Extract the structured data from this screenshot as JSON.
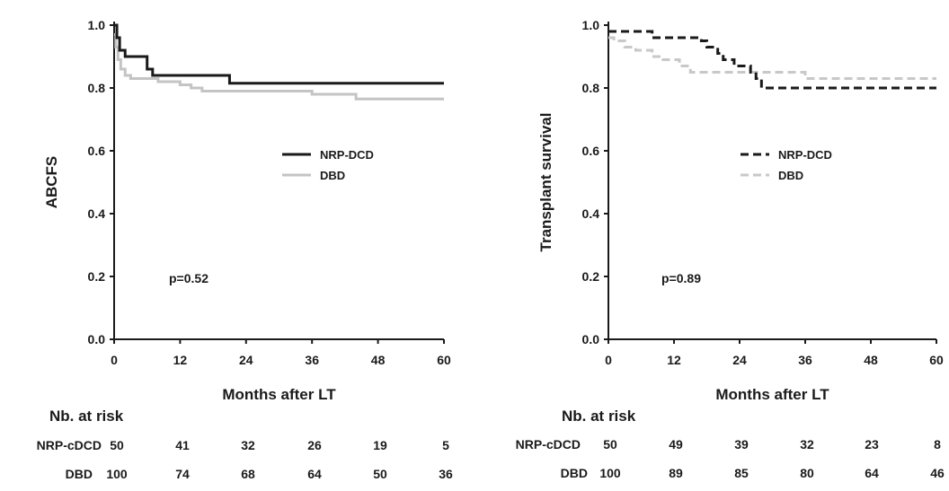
{
  "chart_data": [
    {
      "type": "line",
      "chart_style": "kaplan-meier step curves",
      "xlabel": "Months after LT",
      "ylabel": "ABCFS",
      "xlim": [
        0,
        60
      ],
      "ylim": [
        0,
        1.0
      ],
      "xticks": [
        "0",
        "12",
        "24",
        "36",
        "48",
        "60"
      ],
      "yticks": [
        "0.0",
        "0.2",
        "0.4",
        "0.6",
        "0.8",
        "1.0"
      ],
      "grid": false,
      "legend_position": "center-right",
      "annotation": "p=0.52",
      "series": [
        {
          "name": "NRP-DCD",
          "color": "#1a1a1a",
          "dash": "solid",
          "x": [
            0,
            0.5,
            1,
            2,
            6,
            7,
            21,
            60
          ],
          "y": [
            1.0,
            0.96,
            0.92,
            0.9,
            0.86,
            0.84,
            0.815,
            0.815
          ]
        },
        {
          "name": "DBD",
          "color": "#c4c4c4",
          "dash": "solid",
          "x": [
            0,
            0.3,
            0.7,
            1.2,
            2,
            3,
            8,
            12,
            14,
            16,
            36,
            44,
            60
          ],
          "y": [
            0.97,
            0.93,
            0.89,
            0.86,
            0.84,
            0.83,
            0.82,
            0.81,
            0.8,
            0.79,
            0.78,
            0.765,
            0.765
          ]
        }
      ],
      "at_risk": {
        "title": "Nb. at risk",
        "rows": [
          {
            "label": "NRP-cDCD",
            "values": [
              "50",
              "41",
              "32",
              "26",
              "19",
              "5"
            ]
          },
          {
            "label": "DBD",
            "values": [
              "100",
              "74",
              "68",
              "64",
              "50",
              "36"
            ]
          }
        ]
      }
    },
    {
      "type": "line",
      "chart_style": "kaplan-meier step curves",
      "xlabel": "Months after LT",
      "ylabel": "Transplant survival",
      "xlim": [
        0,
        60
      ],
      "ylim": [
        0,
        1.0
      ],
      "xticks": [
        "0",
        "12",
        "24",
        "36",
        "48",
        "60"
      ],
      "yticks": [
        "0.0",
        "0.2",
        "0.4",
        "0.6",
        "0.8",
        "1.0"
      ],
      "grid": false,
      "legend_position": "center-right",
      "annotation": "p=0.89",
      "series": [
        {
          "name": "NRP-DCD",
          "color": "#1a1a1a",
          "dash": "dashed",
          "x": [
            0,
            8,
            17,
            18,
            20,
            21,
            23,
            26,
            27,
            28,
            60
          ],
          "y": [
            0.98,
            0.96,
            0.95,
            0.93,
            0.91,
            0.89,
            0.87,
            0.85,
            0.83,
            0.8,
            0.8
          ]
        },
        {
          "name": "DBD",
          "color": "#c8c8c8",
          "dash": "dashed",
          "x": [
            0,
            1,
            3,
            5,
            8,
            10,
            13,
            15,
            36,
            60
          ],
          "y": [
            0.96,
            0.95,
            0.93,
            0.92,
            0.9,
            0.89,
            0.87,
            0.85,
            0.83,
            0.83
          ]
        }
      ],
      "at_risk": {
        "title": "Nb. at risk",
        "rows": [
          {
            "label": "NRP-cDCD",
            "values": [
              "50",
              "49",
              "39",
              "32",
              "23",
              "8"
            ]
          },
          {
            "label": "DBD",
            "values": [
              "100",
              "89",
              "85",
              "80",
              "64",
              "46"
            ]
          }
        ]
      }
    }
  ]
}
